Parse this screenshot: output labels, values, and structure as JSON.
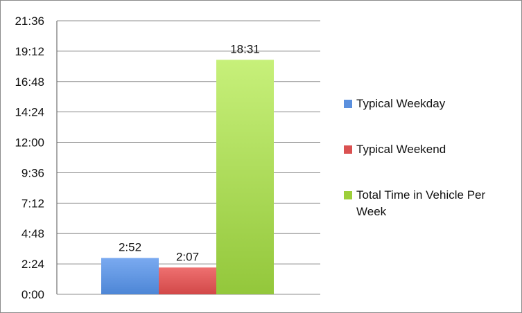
{
  "chart_data": {
    "type": "bar",
    "categories": [
      ""
    ],
    "series": [
      {
        "name": "Typical Weekday",
        "values_minutes": [
          172
        ],
        "label": "2:52",
        "color": "#6a9de6"
      },
      {
        "name": "Typical Weekend",
        "values_minutes": [
          127
        ],
        "label": "2:07",
        "color": "#e05a5a"
      },
      {
        "name": "Total Time in Vehicle Per Week",
        "values_minutes": [
          1111
        ],
        "label": "18:31",
        "color": "#9dcf3a"
      }
    ],
    "y_ticks": [
      "0:00",
      "2:24",
      "4:48",
      "7:12",
      "9:36",
      "12:00",
      "14:24",
      "16:48",
      "19:12",
      "21:36"
    ],
    "y_tick_minutes": [
      0,
      144,
      288,
      432,
      576,
      720,
      864,
      1008,
      1152,
      1296
    ],
    "ylim_minutes": [
      0,
      1296
    ],
    "grid": true,
    "legend_position": "right"
  }
}
